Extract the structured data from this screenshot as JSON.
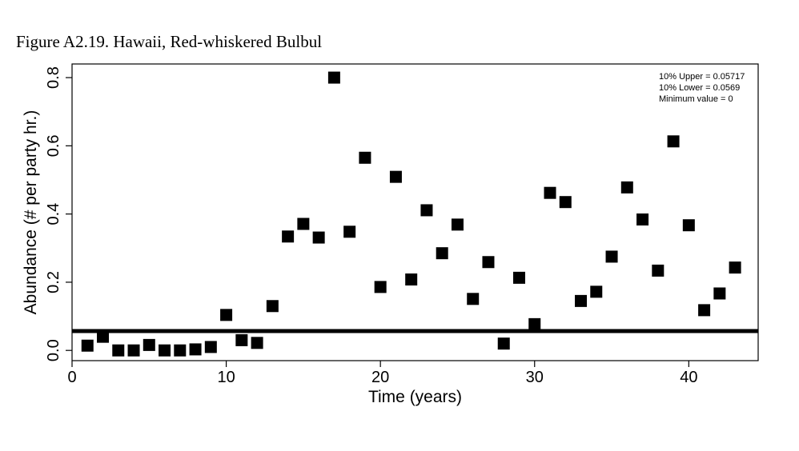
{
  "figure_title": "Figure A2.19. Hawaii, Red-whiskered Bulbul",
  "chart_data": {
    "type": "scatter",
    "xlabel": "Time (years)",
    "ylabel": "Abundance (# per party hr.)",
    "xlim": [
      0,
      44.5
    ],
    "ylim": [
      -0.03,
      0.84
    ],
    "xticks": [
      0,
      10,
      20,
      30,
      40
    ],
    "yticks": [
      0.0,
      0.2,
      0.4,
      0.6,
      0.8
    ],
    "xtick_labels": [
      "0",
      "10",
      "20",
      "30",
      "40"
    ],
    "ytick_labels": [
      "0.0",
      "0.2",
      "0.4",
      "0.6",
      "0.8"
    ],
    "points": [
      [
        1,
        0.014
      ],
      [
        2,
        0.04
      ],
      [
        3,
        0.0
      ],
      [
        4,
        0.0
      ],
      [
        5,
        0.016
      ],
      [
        6,
        0.0
      ],
      [
        7,
        0.0
      ],
      [
        8,
        0.003
      ],
      [
        9,
        0.01
      ],
      [
        10,
        0.104
      ],
      [
        11,
        0.03
      ],
      [
        12,
        0.022
      ],
      [
        13,
        0.13
      ],
      [
        14,
        0.334
      ],
      [
        15,
        0.371
      ],
      [
        16,
        0.331
      ],
      [
        17,
        0.8
      ],
      [
        18,
        0.348
      ],
      [
        19,
        0.565
      ],
      [
        20,
        0.186
      ],
      [
        21,
        0.509
      ],
      [
        22,
        0.208
      ],
      [
        23,
        0.411
      ],
      [
        24,
        0.285
      ],
      [
        25,
        0.369
      ],
      [
        26,
        0.151
      ],
      [
        27,
        0.259
      ],
      [
        28,
        0.02
      ],
      [
        29,
        0.213
      ],
      [
        30,
        0.077
      ],
      [
        31,
        0.462
      ],
      [
        32,
        0.435
      ],
      [
        33,
        0.145
      ],
      [
        34,
        0.172
      ],
      [
        35,
        0.275
      ],
      [
        36,
        0.478
      ],
      [
        37,
        0.384
      ],
      [
        38,
        0.234
      ],
      [
        39,
        0.613
      ],
      [
        40,
        0.367
      ],
      [
        41,
        0.118
      ],
      [
        42,
        0.167
      ],
      [
        43,
        0.243
      ]
    ],
    "threshold_line": 0.0569,
    "annotations": [
      "10% Upper =  0.05717",
      "10% Lower =  0.0569",
      "Minimum value =  0"
    ],
    "marker": "filled-square",
    "marker_color": "#000000",
    "grid": false
  }
}
